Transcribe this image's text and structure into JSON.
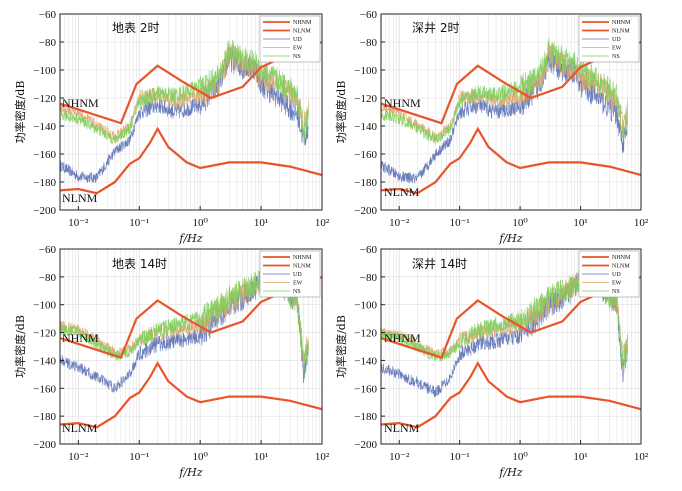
{
  "chart_data": [
    {
      "type": "line",
      "title": "地表  2时",
      "xlabel": "f/Hz",
      "ylabel": "功率密度/dB",
      "xscale": "log",
      "xlim": [
        0.005,
        100
      ],
      "ylim": [
        -200,
        -60
      ],
      "xticks": [
        {
          "v": 0.01,
          "label": "10⁻²"
        },
        {
          "v": 0.1,
          "label": "10⁻¹"
        },
        {
          "v": 1,
          "label": "10⁰"
        },
        {
          "v": 10,
          "label": "10¹"
        },
        {
          "v": 100,
          "label": "10²"
        }
      ],
      "yticks": [
        -200,
        -180,
        -160,
        -140,
        -120,
        -100,
        -80,
        -60
      ],
      "grid": true,
      "legend_position": "top-right",
      "legend": [
        "NHNM",
        "NLNM",
        "UD",
        "EW",
        "NS"
      ],
      "model_labels": {
        "nhnm": "NHNM",
        "nlnm": "NLNM"
      },
      "models": {
        "NHNM": {
          "x": [
            0.005,
            0.05,
            0.09,
            0.2,
            0.5,
            1.5,
            5,
            10,
            20,
            100
          ],
          "y": [
            -124,
            -138,
            -110,
            -97,
            -108,
            -120,
            -112,
            -98,
            -92,
            -80
          ]
        },
        "NLNM": {
          "x": [
            0.005,
            0.01,
            0.02,
            0.04,
            0.07,
            0.1,
            0.15,
            0.2,
            0.3,
            0.6,
            1,
            3,
            10,
            30,
            100
          ],
          "y": [
            -186,
            -185,
            -188,
            -180,
            -167,
            -163,
            -152,
            -142,
            -155,
            -166,
            -170,
            -166,
            -166,
            -169,
            -175
          ]
        }
      },
      "series": [
        {
          "name": "UD",
          "x": [
            0.005,
            0.01,
            0.02,
            0.04,
            0.07,
            0.1,
            0.2,
            0.4,
            1,
            2,
            3,
            5,
            8,
            10,
            20,
            40,
            50,
            60
          ],
          "y": [
            -168,
            -176,
            -177,
            -158,
            -150,
            -130,
            -125,
            -130,
            -125,
            -110,
            -92,
            -98,
            -98,
            -110,
            -120,
            -132,
            -150,
            -140
          ]
        },
        {
          "name": "EW",
          "x": [
            0.005,
            0.01,
            0.02,
            0.04,
            0.07,
            0.1,
            0.2,
            0.4,
            1,
            2,
            3,
            5,
            8,
            10,
            20,
            40,
            50,
            60
          ],
          "y": [
            -128,
            -130,
            -140,
            -148,
            -140,
            -120,
            -118,
            -122,
            -118,
            -110,
            -88,
            -96,
            -100,
            -105,
            -110,
            -122,
            -140,
            -130
          ]
        },
        {
          "name": "NS",
          "x": [
            0.005,
            0.01,
            0.02,
            0.04,
            0.07,
            0.1,
            0.2,
            0.4,
            1,
            2,
            3,
            5,
            8,
            10,
            20,
            40,
            50,
            60
          ],
          "y": [
            -132,
            -135,
            -142,
            -150,
            -142,
            -122,
            -117,
            -118,
            -112,
            -105,
            -86,
            -92,
            -95,
            -100,
            -108,
            -118,
            -145,
            -135
          ]
        }
      ]
    },
    {
      "type": "line",
      "title": "深井  2时",
      "xlabel": "f/Hz",
      "ylabel": "功率密度/dB",
      "xscale": "log",
      "xlim": [
        0.005,
        100
      ],
      "ylim": [
        -200,
        -60
      ],
      "xticks": [
        {
          "v": 0.01,
          "label": "10⁻²"
        },
        {
          "v": 0.1,
          "label": "10⁻¹"
        },
        {
          "v": 1,
          "label": "10⁰"
        },
        {
          "v": 10,
          "label": "10¹"
        },
        {
          "v": 100,
          "label": "10²"
        }
      ],
      "yticks": [
        -200,
        -180,
        -160,
        -140,
        -120,
        -100,
        -80,
        -60
      ],
      "grid": true,
      "legend_position": "top-right",
      "legend": [
        "NHNM",
        "NLNM",
        "UD",
        "EW",
        "NS"
      ],
      "model_labels": {
        "nhnm": "NHNM",
        "nlnm": "NLNM"
      },
      "models": {
        "NHNM": {
          "x": [
            0.005,
            0.05,
            0.09,
            0.2,
            0.5,
            1.5,
            5,
            10,
            20,
            100
          ],
          "y": [
            -124,
            -138,
            -110,
            -97,
            -108,
            -120,
            -112,
            -98,
            -92,
            -80
          ]
        },
        "NLNM": {
          "x": [
            0.005,
            0.01,
            0.02,
            0.04,
            0.07,
            0.1,
            0.15,
            0.2,
            0.3,
            0.6,
            1,
            3,
            10,
            30,
            100
          ],
          "y": [
            -186,
            -185,
            -188,
            -180,
            -167,
            -163,
            -152,
            -142,
            -155,
            -166,
            -170,
            -166,
            -166,
            -169,
            -175
          ]
        }
      },
      "series": [
        {
          "name": "UD",
          "x": [
            0.005,
            0.01,
            0.02,
            0.04,
            0.07,
            0.1,
            0.2,
            0.4,
            1,
            2,
            3,
            5,
            8,
            10,
            20,
            40,
            50,
            60
          ],
          "y": [
            -168,
            -176,
            -178,
            -160,
            -150,
            -130,
            -125,
            -130,
            -126,
            -112,
            -94,
            -100,
            -100,
            -110,
            -120,
            -132,
            -152,
            -142
          ]
        },
        {
          "name": "EW",
          "x": [
            0.005,
            0.01,
            0.02,
            0.04,
            0.07,
            0.1,
            0.2,
            0.4,
            1,
            2,
            3,
            5,
            8,
            10,
            20,
            40,
            50,
            60
          ],
          "y": [
            -128,
            -130,
            -140,
            -148,
            -140,
            -120,
            -118,
            -122,
            -118,
            -110,
            -88,
            -96,
            -100,
            -105,
            -110,
            -122,
            -140,
            -130
          ]
        },
        {
          "name": "NS",
          "x": [
            0.005,
            0.01,
            0.02,
            0.04,
            0.07,
            0.1,
            0.2,
            0.4,
            1,
            2,
            3,
            5,
            8,
            10,
            20,
            40,
            50,
            60
          ],
          "y": [
            -132,
            -135,
            -142,
            -150,
            -142,
            -122,
            -117,
            -118,
            -112,
            -105,
            -86,
            -92,
            -95,
            -100,
            -108,
            -118,
            -145,
            -135
          ]
        }
      ]
    },
    {
      "type": "line",
      "title": "地表  14时",
      "xlabel": "f/Hz",
      "ylabel": "功率密度/dB",
      "xscale": "log",
      "xlim": [
        0.005,
        100
      ],
      "ylim": [
        -200,
        -60
      ],
      "xticks": [
        {
          "v": 0.01,
          "label": "10⁻²"
        },
        {
          "v": 0.1,
          "label": "10⁻¹"
        },
        {
          "v": 1,
          "label": "10⁰"
        },
        {
          "v": 10,
          "label": "10¹"
        },
        {
          "v": 100,
          "label": "10²"
        }
      ],
      "yticks": [
        -200,
        -180,
        -160,
        -140,
        -120,
        -100,
        -80,
        -60
      ],
      "grid": true,
      "legend_position": "top-right",
      "legend": [
        "NHNM",
        "NLNM",
        "UD",
        "EW",
        "NS"
      ],
      "model_labels": {
        "nhnm": "NHNM",
        "nlnm": "NLNM"
      },
      "models": {
        "NHNM": {
          "x": [
            0.005,
            0.05,
            0.09,
            0.2,
            0.5,
            1.5,
            5,
            10,
            20,
            100
          ],
          "y": [
            -124,
            -138,
            -110,
            -97,
            -108,
            -120,
            -112,
            -98,
            -92,
            -80
          ]
        },
        "NLNM": {
          "x": [
            0.005,
            0.01,
            0.02,
            0.04,
            0.07,
            0.1,
            0.15,
            0.2,
            0.3,
            0.6,
            1,
            3,
            10,
            30,
            100
          ],
          "y": [
            -186,
            -185,
            -188,
            -180,
            -167,
            -163,
            -152,
            -142,
            -155,
            -166,
            -170,
            -166,
            -166,
            -169,
            -175
          ]
        }
      },
      "series": [
        {
          "name": "UD",
          "x": [
            0.005,
            0.01,
            0.02,
            0.04,
            0.07,
            0.1,
            0.2,
            0.4,
            1,
            2,
            3,
            5,
            8,
            10,
            20,
            40,
            50,
            60
          ],
          "y": [
            -140,
            -145,
            -152,
            -160,
            -150,
            -135,
            -128,
            -126,
            -122,
            -110,
            -100,
            -95,
            -88,
            -80,
            -85,
            -100,
            -150,
            -130
          ]
        },
        {
          "name": "EW",
          "x": [
            0.005,
            0.01,
            0.02,
            0.04,
            0.07,
            0.1,
            0.2,
            0.4,
            1,
            2,
            3,
            5,
            8,
            10,
            20,
            40,
            50,
            60
          ],
          "y": [
            -115,
            -118,
            -125,
            -135,
            -132,
            -125,
            -120,
            -118,
            -115,
            -105,
            -98,
            -92,
            -86,
            -80,
            -82,
            -98,
            -140,
            -125
          ]
        },
        {
          "name": "NS",
          "x": [
            0.005,
            0.01,
            0.02,
            0.04,
            0.07,
            0.1,
            0.2,
            0.4,
            1,
            2,
            3,
            5,
            8,
            10,
            20,
            40,
            50,
            60
          ],
          "y": [
            -118,
            -120,
            -128,
            -137,
            -134,
            -126,
            -118,
            -115,
            -110,
            -102,
            -95,
            -90,
            -85,
            -82,
            -84,
            -100,
            -145,
            -128
          ]
        }
      ]
    },
    {
      "type": "line",
      "title": "深井  14时",
      "xlabel": "f/Hz",
      "ylabel": "功率密度/dB",
      "xscale": "log",
      "xlim": [
        0.005,
        100
      ],
      "ylim": [
        -200,
        -60
      ],
      "xticks": [
        {
          "v": 0.01,
          "label": "10⁻²"
        },
        {
          "v": 0.1,
          "label": "10⁻¹"
        },
        {
          "v": 1,
          "label": "10⁰"
        },
        {
          "v": 10,
          "label": "10¹"
        },
        {
          "v": 100,
          "label": "10²"
        }
      ],
      "yticks": [
        -200,
        -180,
        -160,
        -140,
        -120,
        -100,
        -80,
        -60
      ],
      "grid": true,
      "legend_position": "top-right",
      "legend": [
        "NHNM",
        "NLNM",
        "UD",
        "EW",
        "NS"
      ],
      "model_labels": {
        "nhnm": "NHNM",
        "nlnm": "NLNM"
      },
      "models": {
        "NHNM": {
          "x": [
            0.005,
            0.05,
            0.09,
            0.2,
            0.5,
            1.5,
            5,
            10,
            20,
            100
          ],
          "y": [
            -124,
            -138,
            -110,
            -97,
            -108,
            -120,
            -112,
            -98,
            -92,
            -80
          ]
        },
        "NLNM": {
          "x": [
            0.005,
            0.01,
            0.02,
            0.04,
            0.07,
            0.1,
            0.15,
            0.2,
            0.3,
            0.6,
            1,
            3,
            10,
            30,
            100
          ],
          "y": [
            -186,
            -185,
            -188,
            -180,
            -167,
            -163,
            -152,
            -142,
            -155,
            -166,
            -170,
            -166,
            -166,
            -169,
            -175
          ]
        }
      },
      "series": [
        {
          "name": "UD",
          "x": [
            0.005,
            0.01,
            0.02,
            0.04,
            0.07,
            0.1,
            0.2,
            0.4,
            1,
            2,
            3,
            5,
            8,
            10,
            20,
            40,
            50,
            60
          ],
          "y": [
            -145,
            -150,
            -156,
            -163,
            -152,
            -136,
            -128,
            -126,
            -122,
            -110,
            -100,
            -95,
            -88,
            -82,
            -86,
            -100,
            -150,
            -130
          ]
        },
        {
          "name": "EW",
          "x": [
            0.005,
            0.01,
            0.02,
            0.04,
            0.07,
            0.1,
            0.2,
            0.4,
            1,
            2,
            3,
            5,
            8,
            10,
            20,
            40,
            50,
            60
          ],
          "y": [
            -120,
            -122,
            -128,
            -136,
            -133,
            -126,
            -120,
            -118,
            -115,
            -105,
            -98,
            -92,
            -86,
            -81,
            -83,
            -98,
            -140,
            -125
          ]
        },
        {
          "name": "NS",
          "x": [
            0.005,
            0.01,
            0.02,
            0.04,
            0.07,
            0.1,
            0.2,
            0.4,
            1,
            2,
            3,
            5,
            8,
            10,
            20,
            40,
            50,
            60
          ],
          "y": [
            -122,
            -124,
            -130,
            -138,
            -135,
            -127,
            -118,
            -115,
            -110,
            -102,
            -95,
            -90,
            -85,
            -82,
            -84,
            -100,
            -145,
            -128
          ]
        }
      ]
    }
  ],
  "colors": {
    "nhnm": "#e8552a",
    "nlnm": "#e8552a",
    "ud": "#5a6fb5",
    "ew": "#d9a66b",
    "ns": "#7dce5a",
    "grid": "#dddddd",
    "axis": "#222222"
  }
}
